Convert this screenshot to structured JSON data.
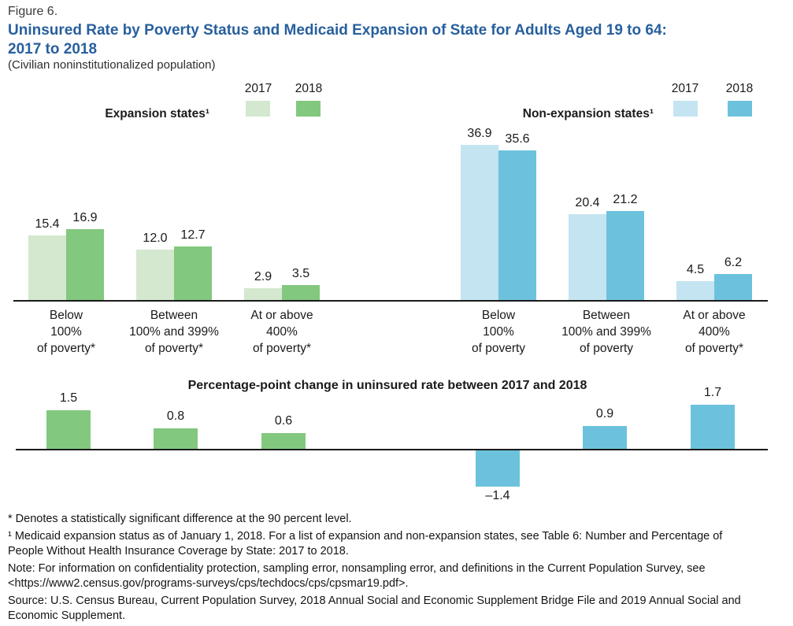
{
  "header": {
    "figure_label": "Figure 6.",
    "title_line1": "Uninsured Rate by Poverty Status and Medicaid Expansion of State for Adults Aged 19 to 64:",
    "title_line2": "2017 to 2018",
    "subtitle": "(Civilian noninstitutionalized population)"
  },
  "colors": {
    "title_blue": "#275f9e",
    "text": "#1a1a1a",
    "green_2017": "#d3e8ce",
    "green_2018": "#82c87e",
    "blue_2017": "#c4e4f1",
    "blue_2018": "#6cc2dd",
    "axis": "#1a1a1a"
  },
  "chart_data": [
    {
      "type": "bar",
      "title": "Expansion states¹",
      "legend": [
        "2017",
        "2018"
      ],
      "legend_position": "top",
      "palette": [
        "green_2017",
        "green_2018"
      ],
      "categories": [
        [
          "Below",
          "100%",
          "of poverty*"
        ],
        [
          "Between",
          "100% and 399%",
          "of poverty*"
        ],
        [
          "At or above",
          "400%",
          "of poverty*"
        ]
      ],
      "series": [
        {
          "name": "2017",
          "values": [
            15.4,
            12.0,
            2.9
          ],
          "labels": [
            "15.4",
            "12.0",
            "2.9"
          ]
        },
        {
          "name": "2018",
          "values": [
            16.9,
            12.7,
            3.5
          ],
          "labels": [
            "16.9",
            "12.7",
            "3.5"
          ]
        }
      ],
      "ylim": [
        0,
        40
      ],
      "grid": false,
      "value_labels": true
    },
    {
      "type": "bar",
      "title": "Non-expansion states¹",
      "legend": [
        "2017",
        "2018"
      ],
      "legend_position": "top",
      "palette": [
        "blue_2017",
        "blue_2018"
      ],
      "categories": [
        [
          "Below",
          "100%",
          "of poverty"
        ],
        [
          "Between",
          "100% and 399%",
          "of poverty"
        ],
        [
          "At or above",
          "400%",
          "of poverty*"
        ]
      ],
      "series": [
        {
          "name": "2017",
          "values": [
            36.9,
            20.4,
            4.5
          ],
          "labels": [
            "36.9",
            "20.4",
            "4.5"
          ]
        },
        {
          "name": "2018",
          "values": [
            35.6,
            21.2,
            6.2
          ],
          "labels": [
            "35.6",
            "21.2",
            "6.2"
          ]
        }
      ],
      "ylim": [
        0,
        40
      ],
      "grid": false,
      "value_labels": true
    },
    {
      "type": "bar",
      "title": "Percentage-point change in uninsured rate between 2017 and 2018",
      "categories": [
        "Expansion states: Below 100% of poverty",
        "Expansion states: Between 100% and 399% of poverty",
        "Expansion states: At or above 400% of poverty",
        "Non-expansion states: Below 100% of poverty",
        "Non-expansion states: Between 100% and 399% of poverty",
        "Non-expansion states: At or above 400% of poverty"
      ],
      "values": [
        1.5,
        0.8,
        0.6,
        -1.4,
        0.9,
        1.7
      ],
      "labels": [
        "1.5",
        "0.8",
        "0.6",
        "–1.4",
        "0.9",
        "1.7"
      ],
      "bar_colors": [
        "green_2018",
        "green_2018",
        "green_2018",
        "blue_2018",
        "blue_2018",
        "blue_2018"
      ],
      "ylim": [
        -1.6,
        1.8
      ],
      "grid": false,
      "value_labels": true
    }
  ],
  "footnotes": [
    "* Denotes a statistically significant difference at the 90 percent level.",
    "¹ Medicaid expansion status as of January 1, 2018. For a list of expansion and non-expansion states, see Table 6: Number and Percentage of People Without Health Insurance Coverage by State: 2017 to 2018.",
    "Note: For information on confidentiality protection, sampling error, nonsampling error, and definitions in the Current Population Survey, see <https://www2.census.gov/programs-surveys/cps/techdocs/cps/cpsmar19.pdf>.",
    "Source: U.S. Census Bureau, Current Population Survey, 2018 Annual Social and Economic Supplement Bridge File and 2019 Annual Social and Economic Supplement."
  ]
}
